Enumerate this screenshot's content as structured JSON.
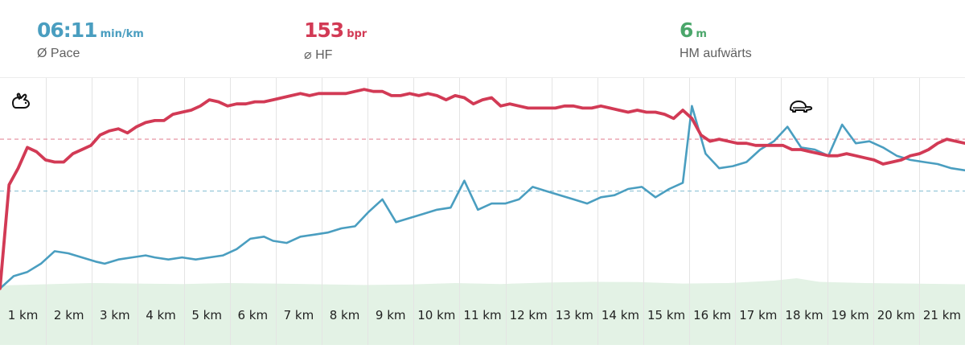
{
  "stats": {
    "pace": {
      "value": "06:11",
      "unit": "min/km",
      "label": "Ø Pace",
      "color": "#4a9ec0"
    },
    "hf": {
      "value": "153",
      "unit": "bpr",
      "label": "⌀ HF",
      "color": "#d23a55"
    },
    "hm": {
      "value": "6",
      "unit": "m",
      "label": "HM aufwärts",
      "color": "#4aa66a"
    }
  },
  "icons": {
    "fast": "rabbit-icon",
    "slow": "turtle-icon"
  },
  "colors": {
    "pace_line": "#4a9ec0",
    "pace_line_light": "#8ec3d6",
    "hr_line": "#d23a55",
    "hr_line_light": "#e48a9b",
    "elevation_fill": "#e3f2e5",
    "grid": "#e4e4e4"
  },
  "chart_data": {
    "type": "line",
    "x_categories": [
      "1 km",
      "2 km",
      "3 km",
      "4 km",
      "5 km",
      "6 km",
      "7 km",
      "8 km",
      "9 km",
      "10 km",
      "11 km",
      "12 km",
      "13 km",
      "14 km",
      "15 km",
      "16 km",
      "17 km",
      "18 km",
      "19 km",
      "20 km",
      "21 km"
    ],
    "x_range": [
      0,
      21.2
    ],
    "averages": {
      "pace_relative": 0.49,
      "hr_relative": 0.74
    },
    "series": [
      {
        "id": "heart_rate",
        "axis_relative": true,
        "points": [
          [
            0,
            0.02
          ],
          [
            0.2,
            0.52
          ],
          [
            0.4,
            0.6
          ],
          [
            0.6,
            0.7
          ],
          [
            0.8,
            0.68
          ],
          [
            1,
            0.64
          ],
          [
            1.2,
            0.63
          ],
          [
            1.4,
            0.63
          ],
          [
            1.6,
            0.67
          ],
          [
            1.8,
            0.69
          ],
          [
            2,
            0.71
          ],
          [
            2.2,
            0.76
          ],
          [
            2.4,
            0.78
          ],
          [
            2.6,
            0.79
          ],
          [
            2.8,
            0.77
          ],
          [
            3,
            0.8
          ],
          [
            3.2,
            0.82
          ],
          [
            3.4,
            0.83
          ],
          [
            3.6,
            0.83
          ],
          [
            3.8,
            0.86
          ],
          [
            4,
            0.87
          ],
          [
            4.2,
            0.88
          ],
          [
            4.4,
            0.9
          ],
          [
            4.6,
            0.93
          ],
          [
            4.8,
            0.92
          ],
          [
            5,
            0.9
          ],
          [
            5.2,
            0.91
          ],
          [
            5.4,
            0.91
          ],
          [
            5.6,
            0.92
          ],
          [
            5.8,
            0.92
          ],
          [
            6,
            0.93
          ],
          [
            6.2,
            0.94
          ],
          [
            6.4,
            0.95
          ],
          [
            6.6,
            0.96
          ],
          [
            6.8,
            0.95
          ],
          [
            7,
            0.96
          ],
          [
            7.2,
            0.96
          ],
          [
            7.4,
            0.96
          ],
          [
            7.6,
            0.96
          ],
          [
            7.8,
            0.97
          ],
          [
            8,
            0.98
          ],
          [
            8.2,
            0.97
          ],
          [
            8.4,
            0.97
          ],
          [
            8.6,
            0.95
          ],
          [
            8.8,
            0.95
          ],
          [
            9,
            0.96
          ],
          [
            9.2,
            0.95
          ],
          [
            9.4,
            0.96
          ],
          [
            9.6,
            0.95
          ],
          [
            9.8,
            0.93
          ],
          [
            10,
            0.95
          ],
          [
            10.2,
            0.94
          ],
          [
            10.4,
            0.91
          ],
          [
            10.6,
            0.93
          ],
          [
            10.8,
            0.94
          ],
          [
            11,
            0.9
          ],
          [
            11.2,
            0.91
          ],
          [
            11.4,
            0.9
          ],
          [
            11.6,
            0.89
          ],
          [
            11.8,
            0.89
          ],
          [
            12,
            0.89
          ],
          [
            12.2,
            0.89
          ],
          [
            12.4,
            0.9
          ],
          [
            12.6,
            0.9
          ],
          [
            12.8,
            0.89
          ],
          [
            13,
            0.89
          ],
          [
            13.2,
            0.9
          ],
          [
            13.4,
            0.89
          ],
          [
            13.6,
            0.88
          ],
          [
            13.8,
            0.87
          ],
          [
            14,
            0.88
          ],
          [
            14.2,
            0.87
          ],
          [
            14.4,
            0.87
          ],
          [
            14.6,
            0.86
          ],
          [
            14.8,
            0.84
          ],
          [
            15,
            0.88
          ],
          [
            15.2,
            0.84
          ],
          [
            15.4,
            0.76
          ],
          [
            15.6,
            0.73
          ],
          [
            15.8,
            0.74
          ],
          [
            16,
            0.73
          ],
          [
            16.2,
            0.72
          ],
          [
            16.4,
            0.72
          ],
          [
            16.6,
            0.71
          ],
          [
            16.8,
            0.71
          ],
          [
            17,
            0.71
          ],
          [
            17.2,
            0.71
          ],
          [
            17.4,
            0.69
          ],
          [
            17.6,
            0.69
          ],
          [
            17.8,
            0.68
          ],
          [
            18,
            0.67
          ],
          [
            18.2,
            0.66
          ],
          [
            18.4,
            0.66
          ],
          [
            18.6,
            0.67
          ],
          [
            18.8,
            0.66
          ],
          [
            19,
            0.65
          ],
          [
            19.2,
            0.64
          ],
          [
            19.4,
            0.62
          ],
          [
            19.6,
            0.63
          ],
          [
            19.8,
            0.64
          ],
          [
            20,
            0.66
          ],
          [
            20.2,
            0.67
          ],
          [
            20.4,
            0.69
          ],
          [
            20.6,
            0.72
          ],
          [
            20.8,
            0.74
          ],
          [
            21,
            0.73
          ],
          [
            21.2,
            0.72
          ]
        ]
      },
      {
        "id": "pace",
        "axis_relative": true,
        "points": [
          [
            0,
            0.02
          ],
          [
            0.3,
            0.08
          ],
          [
            0.6,
            0.1
          ],
          [
            0.9,
            0.14
          ],
          [
            1.2,
            0.2
          ],
          [
            1.5,
            0.19
          ],
          [
            1.8,
            0.17
          ],
          [
            2.1,
            0.15
          ],
          [
            2.3,
            0.14
          ],
          [
            2.6,
            0.16
          ],
          [
            2.9,
            0.17
          ],
          [
            3.2,
            0.18
          ],
          [
            3.4,
            0.17
          ],
          [
            3.7,
            0.16
          ],
          [
            4,
            0.17
          ],
          [
            4.3,
            0.16
          ],
          [
            4.6,
            0.17
          ],
          [
            4.9,
            0.18
          ],
          [
            5.2,
            0.21
          ],
          [
            5.5,
            0.26
          ],
          [
            5.8,
            0.27
          ],
          [
            6,
            0.25
          ],
          [
            6.3,
            0.24
          ],
          [
            6.6,
            0.27
          ],
          [
            6.9,
            0.28
          ],
          [
            7.2,
            0.29
          ],
          [
            7.5,
            0.31
          ],
          [
            7.8,
            0.32
          ],
          [
            8.1,
            0.39
          ],
          [
            8.4,
            0.45
          ],
          [
            8.7,
            0.34
          ],
          [
            9,
            0.36
          ],
          [
            9.3,
            0.38
          ],
          [
            9.6,
            0.4
          ],
          [
            9.9,
            0.41
          ],
          [
            10.2,
            0.54
          ],
          [
            10.5,
            0.4
          ],
          [
            10.8,
            0.43
          ],
          [
            11.1,
            0.43
          ],
          [
            11.4,
            0.45
          ],
          [
            11.7,
            0.51
          ],
          [
            12,
            0.49
          ],
          [
            12.3,
            0.47
          ],
          [
            12.6,
            0.45
          ],
          [
            12.9,
            0.43
          ],
          [
            13.2,
            0.46
          ],
          [
            13.5,
            0.47
          ],
          [
            13.8,
            0.5
          ],
          [
            14.1,
            0.51
          ],
          [
            14.4,
            0.46
          ],
          [
            14.7,
            0.5
          ],
          [
            15,
            0.53
          ],
          [
            15.2,
            0.9
          ],
          [
            15.5,
            0.67
          ],
          [
            15.8,
            0.6
          ],
          [
            16.1,
            0.61
          ],
          [
            16.4,
            0.63
          ],
          [
            16.7,
            0.69
          ],
          [
            17,
            0.73
          ],
          [
            17.3,
            0.8
          ],
          [
            17.6,
            0.7
          ],
          [
            17.9,
            0.69
          ],
          [
            18.2,
            0.66
          ],
          [
            18.5,
            0.81
          ],
          [
            18.8,
            0.72
          ],
          [
            19.1,
            0.73
          ],
          [
            19.4,
            0.7
          ],
          [
            19.7,
            0.66
          ],
          [
            20,
            0.64
          ],
          [
            20.3,
            0.63
          ],
          [
            20.6,
            0.62
          ],
          [
            20.9,
            0.6
          ],
          [
            21.2,
            0.59
          ]
        ]
      },
      {
        "id": "elevation",
        "axis_relative": true,
        "points": [
          [
            0,
            0.03
          ],
          [
            1,
            0.035
          ],
          [
            2,
            0.04
          ],
          [
            3,
            0.038
          ],
          [
            4,
            0.036
          ],
          [
            5,
            0.04
          ],
          [
            6,
            0.038
          ],
          [
            7,
            0.035
          ],
          [
            8,
            0.032
          ],
          [
            9,
            0.034
          ],
          [
            10,
            0.04
          ],
          [
            11,
            0.036
          ],
          [
            12,
            0.042
          ],
          [
            13,
            0.045
          ],
          [
            14,
            0.044
          ],
          [
            15,
            0.038
          ],
          [
            16,
            0.04
          ],
          [
            17,
            0.05
          ],
          [
            17.5,
            0.06
          ],
          [
            18,
            0.045
          ],
          [
            19,
            0.04
          ],
          [
            20,
            0.038
          ],
          [
            21.2,
            0.035
          ]
        ]
      }
    ]
  }
}
